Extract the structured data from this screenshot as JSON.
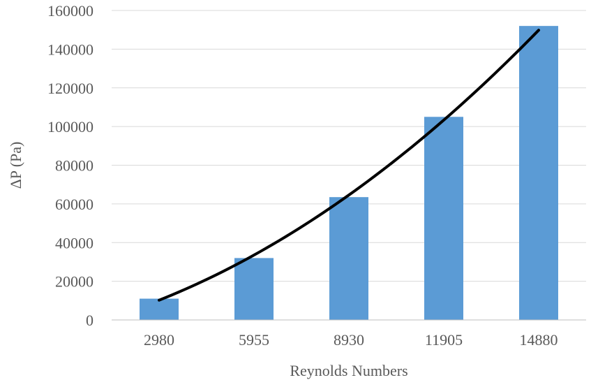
{
  "chart_data": {
    "type": "bar",
    "categories": [
      "2980",
      "5955",
      "8930",
      "11905",
      "14880"
    ],
    "values": [
      11000,
      32000,
      63500,
      105000,
      152000
    ],
    "xlabel": "Reynolds Numbers",
    "ylabel": "ΔP (Pa)",
    "ylim": [
      0,
      160000
    ],
    "yticks": [
      "0",
      "20000",
      "40000",
      "60000",
      "80000",
      "100000",
      "120000",
      "140000",
      "160000"
    ],
    "grid": true,
    "legend": "none",
    "trendline": {
      "type": "polynomial",
      "values": [
        10500,
        33000,
        64500,
        104000,
        149500
      ]
    },
    "colors": {
      "bar": "#5b9bd5",
      "trendline": "#000000",
      "grid": "#d9d9d9",
      "text": "#595959"
    }
  }
}
